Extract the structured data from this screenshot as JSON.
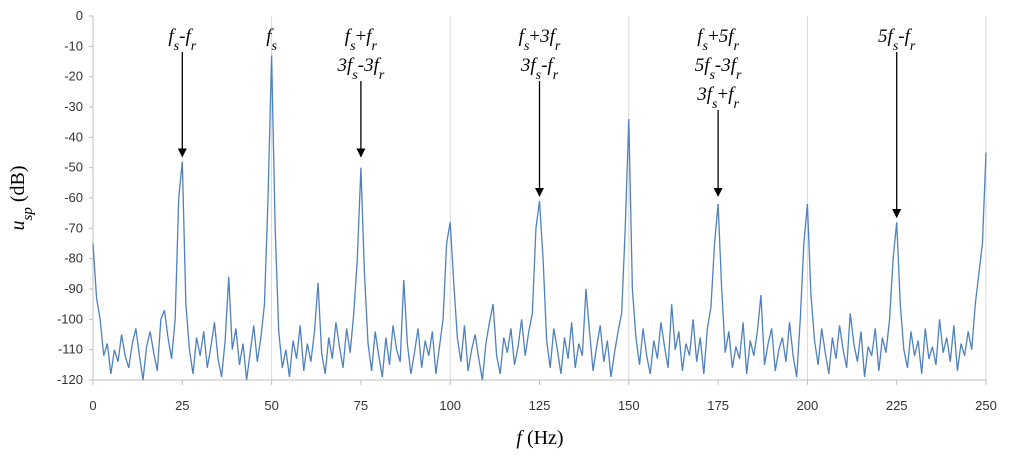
{
  "chart_data": {
    "type": "line",
    "x_label": "f (Hz)",
    "y_label": "usp (dB)",
    "xlim": [
      0,
      250
    ],
    "ylim": [
      -120,
      0
    ],
    "xticks": [
      0,
      25,
      50,
      75,
      100,
      125,
      150,
      175,
      200,
      225,
      250
    ],
    "yticks": [
      0,
      -10,
      -20,
      -30,
      -40,
      -50,
      -60,
      -70,
      -80,
      -90,
      -100,
      -110,
      -120
    ],
    "xgrid": [
      50,
      100,
      150,
      200,
      250
    ],
    "x": [
      0,
      1,
      2,
      3,
      4,
      5,
      6,
      7,
      8,
      9,
      10,
      11,
      12,
      13,
      14,
      15,
      16,
      17,
      18,
      19,
      20,
      21,
      22,
      23,
      24,
      25,
      26,
      27,
      28,
      29,
      30,
      31,
      32,
      33,
      34,
      35,
      36,
      37,
      38,
      39,
      40,
      41,
      42,
      43,
      44,
      45,
      46,
      47,
      48,
      49,
      50,
      51,
      52,
      53,
      54,
      55,
      56,
      57,
      58,
      59,
      60,
      61,
      62,
      63,
      64,
      65,
      66,
      67,
      68,
      69,
      70,
      71,
      72,
      73,
      74,
      75,
      76,
      77,
      78,
      79,
      80,
      81,
      82,
      83,
      84,
      85,
      86,
      87,
      88,
      89,
      90,
      91,
      92,
      93,
      94,
      95,
      96,
      97,
      98,
      99,
      100,
      101,
      102,
      103,
      104,
      105,
      106,
      107,
      108,
      109,
      110,
      111,
      112,
      113,
      114,
      115,
      116,
      117,
      118,
      119,
      120,
      121,
      122,
      123,
      124,
      125,
      126,
      127,
      128,
      129,
      130,
      131,
      132,
      133,
      134,
      135,
      136,
      137,
      138,
      139,
      140,
      141,
      142,
      143,
      144,
      145,
      146,
      147,
      148,
      149,
      150,
      151,
      152,
      153,
      154,
      155,
      156,
      157,
      158,
      159,
      160,
      161,
      162,
      163,
      164,
      165,
      166,
      167,
      168,
      169,
      170,
      171,
      172,
      173,
      174,
      175,
      176,
      177,
      178,
      179,
      180,
      181,
      182,
      183,
      184,
      185,
      186,
      187,
      188,
      189,
      190,
      191,
      192,
      193,
      194,
      195,
      196,
      197,
      198,
      199,
      200,
      201,
      202,
      203,
      204,
      205,
      206,
      207,
      208,
      209,
      210,
      211,
      212,
      213,
      214,
      215,
      216,
      217,
      218,
      219,
      220,
      221,
      222,
      223,
      224,
      225,
      226,
      227,
      228,
      229,
      230,
      231,
      232,
      233,
      234,
      235,
      236,
      237,
      238,
      239,
      240,
      241,
      242,
      243,
      244,
      245,
      246,
      247,
      248,
      249,
      250
    ],
    "series": [
      {
        "color": "#4f81bd",
        "values": [
          -75,
          -93,
          -100,
          -112,
          -108,
          -118,
          -110,
          -114,
          -105,
          -112,
          -116,
          -108,
          -103,
          -112,
          -120,
          -109,
          -104,
          -111,
          -117,
          -100,
          -97,
          -106,
          -113,
          -100,
          -60,
          -48,
          -95,
          -110,
          -118,
          -106,
          -112,
          -104,
          -116,
          -109,
          -101,
          -113,
          -119,
          -107,
          -86,
          -110,
          -103,
          -115,
          -108,
          -120,
          -111,
          -102,
          -114,
          -106,
          -95,
          -60,
          -13,
          -70,
          -104,
          -116,
          -110,
          -119,
          -107,
          -113,
          -102,
          -117,
          -108,
          -114,
          -104,
          -88,
          -111,
          -118,
          -106,
          -113,
          -101,
          -109,
          -116,
          -103,
          -111,
          -98,
          -80,
          -50,
          -85,
          -108,
          -117,
          -104,
          -112,
          -119,
          -106,
          -115,
          -102,
          -110,
          -114,
          -87,
          -108,
          -118,
          -111,
          -103,
          -116,
          -107,
          -112,
          -104,
          -118,
          -109,
          -100,
          -75,
          -68,
          -88,
          -106,
          -114,
          -102,
          -117,
          -110,
          -105,
          -113,
          -120,
          -108,
          -101,
          -95,
          -112,
          -118,
          -106,
          -111,
          -103,
          -115,
          -109,
          -100,
          -112,
          -104,
          -98,
          -70,
          -61,
          -80,
          -107,
          -116,
          -103,
          -110,
          -118,
          -106,
          -113,
          -101,
          -116,
          -108,
          -112,
          -90,
          -104,
          -117,
          -109,
          -102,
          -114,
          -107,
          -119,
          -111,
          -104,
          -98,
          -70,
          -34,
          -90,
          -106,
          -115,
          -103,
          -112,
          -118,
          -107,
          -113,
          -101,
          -109,
          -116,
          -95,
          -110,
          -104,
          -117,
          -108,
          -112,
          -100,
          -114,
          -106,
          -118,
          -103,
          -96,
          -75,
          -62,
          -90,
          -111,
          -104,
          -116,
          -109,
          -113,
          -101,
          -118,
          -107,
          -112,
          -104,
          -92,
          -115,
          -108,
          -103,
          -117,
          -110,
          -106,
          -114,
          -101,
          -112,
          -119,
          -100,
          -75,
          -62,
          -92,
          -107,
          -115,
          -103,
          -111,
          -118,
          -106,
          -113,
          -102,
          -110,
          -116,
          -98,
          -108,
          -114,
          -104,
          -119,
          -109,
          -112,
          -103,
          -117,
          -106,
          -111,
          -100,
          -80,
          -68,
          -95,
          -110,
          -116,
          -104,
          -112,
          -107,
          -118,
          -103,
          -113,
          -109,
          -115,
          -100,
          -111,
          -106,
          -114,
          -102,
          -117,
          -108,
          -112,
          -104,
          -110,
          -95,
          -85,
          -75,
          -45
        ]
      }
    ],
    "annotations": [
      {
        "lines": [
          "fs-fr"
        ],
        "x": 25,
        "y": -47
      },
      {
        "lines": [
          "fs"
        ],
        "x": 50
      },
      {
        "lines": [
          "fs+fr",
          "3fs-3fr"
        ],
        "x": 75,
        "y": -47
      },
      {
        "lines": [
          "fs+3fr",
          "3fs-fr"
        ],
        "x": 125,
        "y": -60
      },
      {
        "lines": [
          "fs+5fr",
          "5fs-3fr",
          "3fs+fr"
        ],
        "x": 175,
        "y": -60
      },
      {
        "lines": [
          "5fs-fr"
        ],
        "x": 225,
        "y": -67
      }
    ]
  }
}
